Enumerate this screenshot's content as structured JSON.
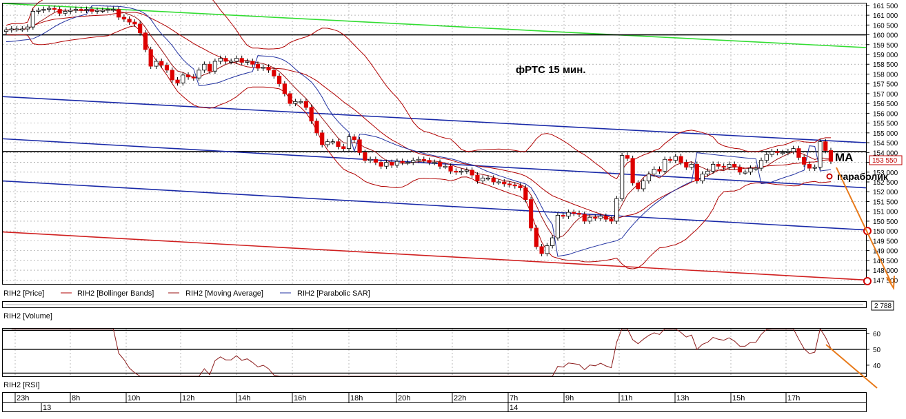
{
  "colors": {
    "grid": "#8c8c8c",
    "candle_up": "#ffffff",
    "candle_down": "#dd0000",
    "bollinger": "#b00000",
    "moving_average": "#9a1010",
    "parabolic_sar": "#2030a0",
    "channel_blue": "#1a2aa8",
    "channel_red": "#d02020",
    "trend_green": "#33dd33",
    "level_black": "#000000",
    "arrow_orange": "#e87a1a",
    "price_box": "#c00000"
  },
  "chart_data": [
    {
      "type": "candlestick",
      "title": "фРТС   15 мин.",
      "ylim": [
        147300,
        161600
      ],
      "yticks": [
        161500,
        161000,
        160500,
        160000,
        159500,
        159000,
        158500,
        158000,
        157500,
        157000,
        156500,
        156000,
        155500,
        155000,
        154500,
        154000,
        153500,
        153000,
        152500,
        152000,
        151500,
        151000,
        150500,
        150000,
        149500,
        149000,
        148500,
        148000,
        147500
      ],
      "ytick_labels": [
        "161 500",
        "161 000",
        "160 500",
        "160 000",
        "159 500",
        "159 000",
        "158 500",
        "158 000",
        "157 500",
        "157 000",
        "156 500",
        "156 000",
        "155 500",
        "155 000",
        "154 500",
        "154 000",
        "153 500",
        "153 000",
        "152 500",
        "152 000",
        "151 500",
        "151 000",
        "150 500",
        "150 000",
        "149 500",
        "149 000",
        "148 500",
        "148 000",
        "147 500"
      ],
      "last_price_label": "153 550",
      "last_price": 153550,
      "bars": 155,
      "grid": true,
      "legend": [
        {
          "name": "RIH2 [Price]"
        },
        {
          "name": "RIH2 [Bollinger Bands]"
        },
        {
          "name": "RIH2 [Moving Average]"
        },
        {
          "name": "RIH2 [Parabolic SAR]"
        }
      ],
      "annotations": [
        {
          "text": "MA"
        },
        {
          "text": "параболик"
        }
      ],
      "closes": [
        160250,
        160300,
        160300,
        160300,
        160400,
        161200,
        161250,
        161300,
        161350,
        161300,
        161100,
        161200,
        161250,
        161300,
        161250,
        161300,
        161200,
        161250,
        161250,
        161300,
        161300,
        160900,
        160800,
        160650,
        160550,
        160100,
        159250,
        158400,
        158650,
        158450,
        158200,
        157700,
        157550,
        157950,
        157850,
        157800,
        158200,
        158500,
        158150,
        158650,
        158800,
        158650,
        158650,
        158800,
        158600,
        158650,
        158500,
        158300,
        158350,
        158200,
        157900,
        157500,
        157000,
        156500,
        156600,
        156600,
        156300,
        155600,
        155000,
        154400,
        154550,
        154550,
        154300,
        154200,
        154800,
        154650,
        154000,
        153600,
        153650,
        153500,
        153300,
        153500,
        153350,
        153550,
        153500,
        153500,
        153600,
        153650,
        153600,
        153500,
        153500,
        153300,
        153300,
        153050,
        153000,
        153050,
        153100,
        152850,
        152550,
        152700,
        152700,
        152500,
        152500,
        152400,
        152350,
        152300,
        152200,
        151600,
        150150,
        149200,
        148850,
        149250,
        149650,
        150800,
        150750,
        150950,
        150900,
        150850,
        150500,
        150700,
        150650,
        150750,
        150600,
        150500,
        151650,
        153850,
        153700,
        152450,
        152150,
        152550,
        152900,
        153150,
        153050,
        153650,
        153600,
        153800,
        153500,
        153250,
        153400,
        152550,
        152900,
        153050,
        153400,
        153300,
        153250,
        153400,
        153250,
        153000,
        153000,
        153200,
        153200,
        153600,
        153900,
        154050,
        154000,
        154000,
        154050,
        154200,
        153750,
        153400,
        153200,
        153250,
        154550,
        154100,
        153550
      ],
      "lines": [
        {
          "name": "green trendline",
          "x": [
            1,
            155
          ],
          "y": [
            161600,
            159350
          ]
        },
        {
          "name": "horizontal level",
          "x": [
            1,
            155
          ],
          "y": [
            160000,
            160000
          ]
        },
        {
          "name": "horizontal level",
          "x": [
            1,
            155
          ],
          "y": [
            154050,
            154050
          ]
        },
        {
          "name": "blue channel upper",
          "x": [
            1,
            155
          ],
          "y": [
            156850,
            154500
          ]
        },
        {
          "name": "blue channel middle",
          "x": [
            1,
            155
          ],
          "y": [
            154700,
            152200
          ]
        },
        {
          "name": "blue channel lower",
          "x": [
            1,
            155
          ],
          "y": [
            152550,
            150050
          ]
        },
        {
          "name": "red channel",
          "x": [
            1,
            155
          ],
          "y": [
            149950,
            147500
          ]
        }
      ],
      "markers": [
        150000,
        147300
      ]
    },
    {
      "type": "line",
      "title": "",
      "box_value": "2 788",
      "label": "RIH2 [Volume]"
    },
    {
      "type": "line",
      "label": "RIH2 [RSI]",
      "ylim": [
        33,
        63
      ],
      "yticks": [
        60,
        50,
        40
      ],
      "levels": [
        62,
        50,
        35
      ],
      "x": [
        "23h",
        "8h",
        "10h",
        "12h",
        "14h",
        "16h",
        "18h",
        "20h",
        "22h",
        "7h",
        "9h",
        "11h",
        "13h",
        "15h",
        "17h"
      ],
      "dates": [
        "13",
        "14"
      ]
    }
  ]
}
